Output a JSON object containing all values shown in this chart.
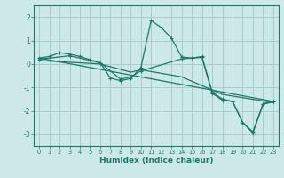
{
  "xlabel": "Humidex (Indice chaleur)",
  "background_color": "#cce8e8",
  "grid_color": "#a8cccc",
  "line_color": "#1a7a6a",
  "xlim": [
    -0.5,
    23.5
  ],
  "ylim": [
    -3.5,
    2.5
  ],
  "yticks": [
    -3,
    -2,
    -1,
    0,
    1,
    2
  ],
  "xticks": [
    0,
    1,
    2,
    3,
    4,
    5,
    6,
    7,
    8,
    9,
    10,
    11,
    12,
    13,
    14,
    15,
    16,
    17,
    18,
    19,
    20,
    21,
    22,
    23
  ],
  "series": [
    {
      "x": [
        0,
        1,
        2,
        3,
        4,
        5,
        6,
        7,
        8,
        9,
        10,
        11,
        12,
        13,
        14,
        15,
        16,
        17,
        18,
        19,
        20,
        21,
        22,
        23
      ],
      "y": [
        0.25,
        0.32,
        0.48,
        0.42,
        0.32,
        0.18,
        0.05,
        -0.6,
        -0.72,
        -0.62,
        -0.15,
        1.85,
        1.55,
        1.1,
        0.3,
        0.25,
        0.32,
        -1.2,
        -1.5,
        -1.6,
        -2.5,
        -2.9,
        -1.7,
        -1.6
      ],
      "marker": true
    },
    {
      "x": [
        0,
        23
      ],
      "y": [
        0.25,
        -1.6
      ],
      "marker": false
    },
    {
      "x": [
        0,
        6,
        9,
        10,
        14,
        18,
        23
      ],
      "y": [
        0.15,
        0.0,
        -0.35,
        -0.25,
        -0.55,
        -1.3,
        -1.65
      ],
      "marker": false
    },
    {
      "x": [
        0,
        3,
        6,
        8,
        9,
        10,
        14,
        16,
        17,
        18,
        19,
        20,
        21,
        22,
        23
      ],
      "y": [
        0.2,
        0.35,
        0.05,
        -0.65,
        -0.55,
        -0.3,
        0.22,
        0.28,
        -1.25,
        -1.55,
        -1.6,
        -2.5,
        -2.95,
        -1.72,
        -1.62
      ],
      "marker": true
    }
  ]
}
